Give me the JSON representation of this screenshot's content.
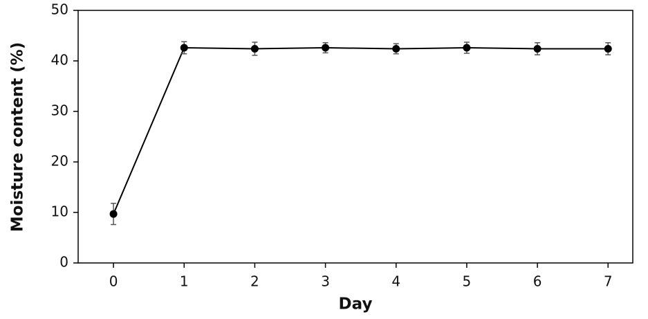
{
  "chart_data": {
    "type": "line",
    "x_label": "Day",
    "y_label": "Moisture content (%)",
    "x": [
      0,
      1,
      2,
      3,
      4,
      5,
      6,
      7
    ],
    "series": [
      {
        "color": "#000000",
        "values": [
          9.7,
          42.6,
          42.4,
          42.6,
          42.4,
          42.6,
          42.4,
          42.4
        ],
        "errors": [
          2.1,
          1.2,
          1.3,
          1.0,
          1.0,
          1.1,
          1.2,
          1.2
        ]
      }
    ],
    "xlim": [
      -0.5,
      7.35
    ],
    "xticks": [
      0,
      1,
      2,
      3,
      4,
      5,
      6,
      7
    ],
    "ylim": [
      0,
      50
    ],
    "yticks": [
      0,
      10,
      20,
      30,
      40,
      50
    ],
    "grid": false
  }
}
